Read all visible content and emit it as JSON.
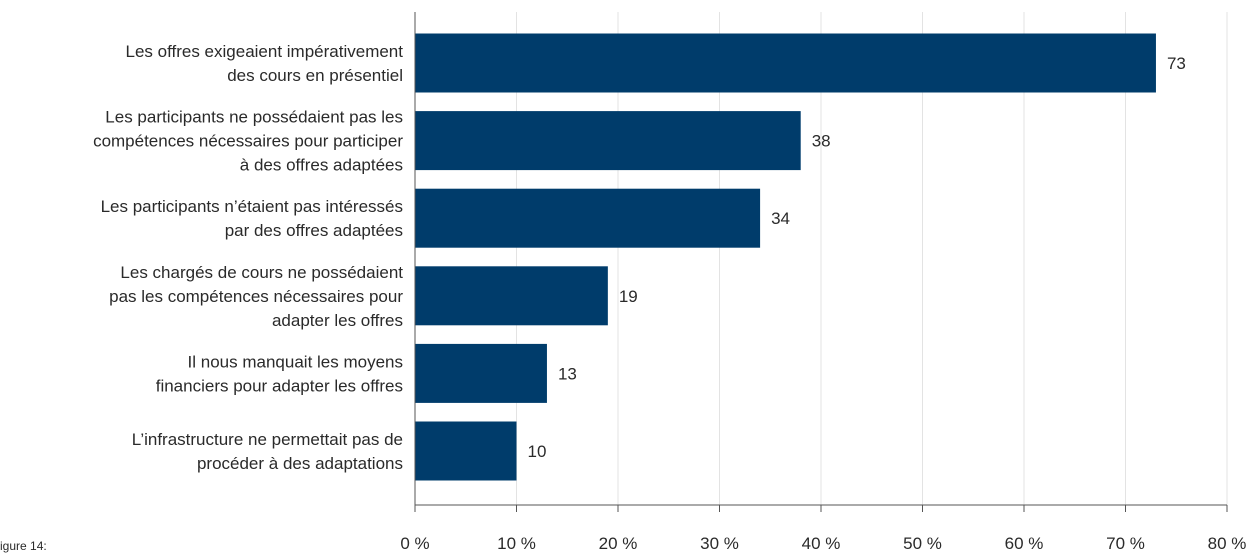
{
  "figure_caption": "igure 14:",
  "chart_data": {
    "type": "bar",
    "orientation": "horizontal",
    "categories": [
      [
        "Les offres exigeaient impérativement",
        "des cours en présentiel"
      ],
      [
        "Les participants ne possédaient pas les",
        "compétences nécessaires pour participer",
        "à des offres adaptées"
      ],
      [
        "Les participants n’étaient pas intéressés",
        "par des offres adaptées"
      ],
      [
        "Les chargés de cours ne possédaient",
        "pas les compétences nécessaires pour",
        "adapter les offres"
      ],
      [
        "Il nous manquait les moyens",
        "financiers pour adapter les offres"
      ],
      [
        "L’infrastructure ne permettait pas de",
        "procéder à des adaptations"
      ]
    ],
    "values": [
      73,
      38,
      34,
      19,
      13,
      10
    ],
    "value_labels": [
      "73",
      "38",
      "34",
      "19",
      "13",
      "10"
    ],
    "xlim": [
      0,
      80
    ],
    "xticks": [
      0,
      10,
      20,
      30,
      40,
      50,
      60,
      70,
      80
    ],
    "xtick_labels": [
      "0 %",
      "10 %",
      "20 %",
      "30 %",
      "40 %",
      "50 %",
      "60 %",
      "70 %",
      "80 %"
    ],
    "bar_color": "#003c6b",
    "grid_color": "#e3e3e3",
    "axis_color": "#555555",
    "grid": "vertical",
    "legend": "none"
  }
}
